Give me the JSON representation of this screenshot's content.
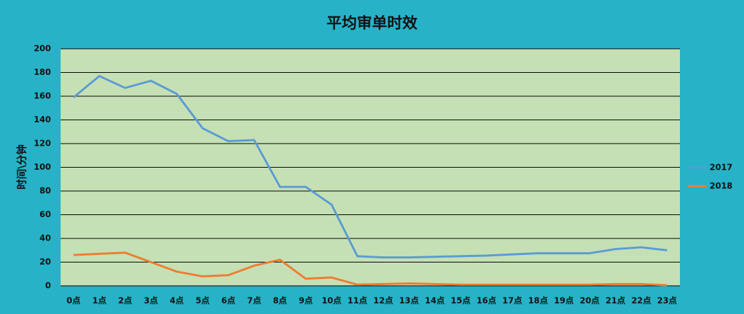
{
  "chart_data": {
    "type": "line",
    "title": "平均审单时效",
    "y_label": "时间\\分钟",
    "categories": [
      "0点",
      "1点",
      "2点",
      "3点",
      "4点",
      "5点",
      "6点",
      "7点",
      "8点",
      "9点",
      "10点",
      "11点",
      "12点",
      "13点",
      "14点",
      "15点",
      "16点",
      "17点",
      "18点",
      "19点",
      "20点",
      "21点",
      "22点",
      "23点"
    ],
    "series": [
      {
        "name": "2017",
        "color": "#5b9bd5",
        "values": [
          159,
          177,
          167,
          173,
          162,
          133,
          122,
          123,
          83.5,
          83.5,
          68.5,
          25,
          24,
          24,
          24.5,
          25,
          25.5,
          26.5,
          27.5,
          27.5,
          27.5,
          31,
          32.5,
          30
        ]
      },
      {
        "name": "2018",
        "color": "#ed7d31",
        "values": [
          26,
          27,
          28,
          20,
          12,
          8,
          9,
          17,
          22,
          6,
          7,
          1,
          1.5,
          2,
          1.5,
          1,
          1,
          1,
          1,
          1,
          1,
          1.5,
          1.5,
          0.5
        ]
      }
    ],
    "ylim": [
      0,
      200
    ],
    "yticks": [
      0,
      20,
      40,
      60,
      80,
      100,
      120,
      140,
      160,
      180,
      200
    ],
    "grid": true,
    "legend": "right"
  }
}
